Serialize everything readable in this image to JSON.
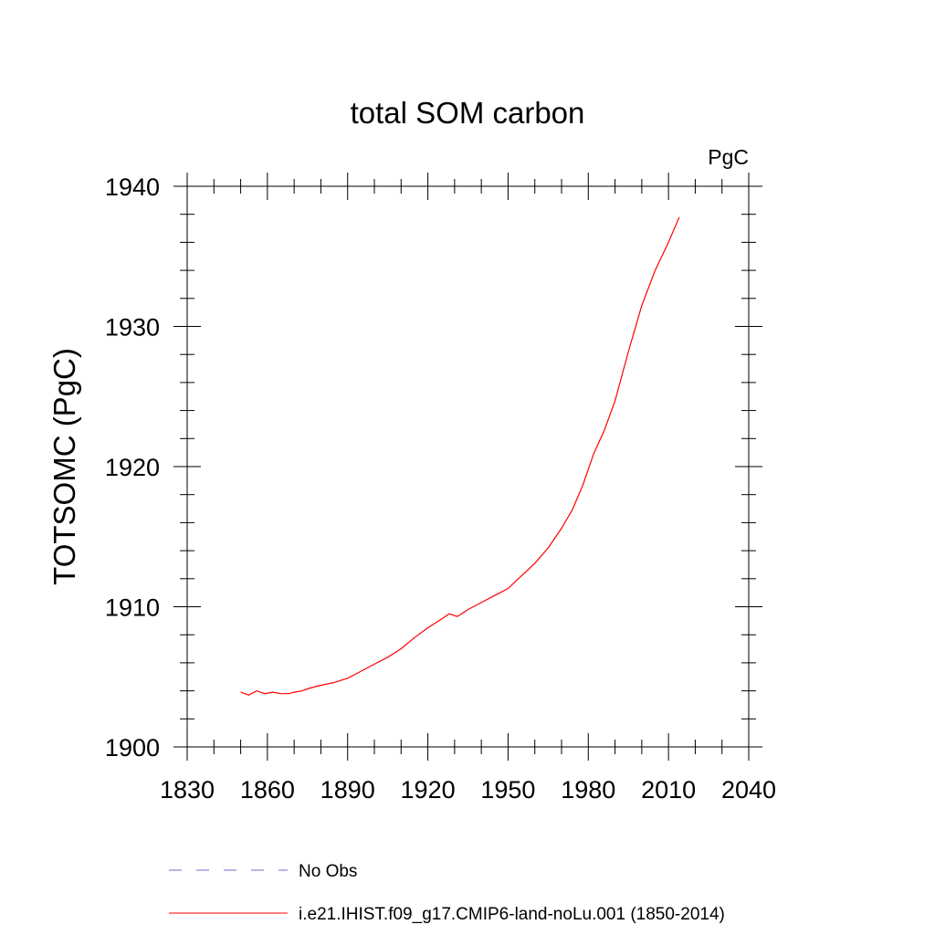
{
  "chart_data": {
    "type": "line",
    "title": "total SOM carbon",
    "units_label": "PgC",
    "xlabel": "",
    "ylabel": "TOTSOMC  (PgC)",
    "xlim": [
      1830,
      2040
    ],
    "ylim": [
      1900,
      1940
    ],
    "x_ticks": [
      1830,
      1860,
      1890,
      1920,
      1950,
      1980,
      2010,
      2040
    ],
    "y_ticks": [
      1900,
      1910,
      1920,
      1930,
      1940
    ],
    "grid": false,
    "legend_placement": "bottom",
    "series": [
      {
        "name": "i.e21.IHIST.f09_g17.CMIP6-land-noLu.001 (1850-2014)",
        "color": "#ff0000",
        "style": "solid",
        "x": [
          1850,
          1853,
          1856,
          1859,
          1862,
          1865,
          1868,
          1870,
          1873,
          1876,
          1880,
          1885,
          1890,
          1895,
          1900,
          1905,
          1910,
          1915,
          1920,
          1925,
          1928,
          1931,
          1935,
          1940,
          1945,
          1950,
          1955,
          1960,
          1965,
          1970,
          1974,
          1978,
          1982,
          1986,
          1990,
          1995,
          2000,
          2005,
          2010,
          2014
        ],
        "y": [
          1903.9,
          1903.7,
          1904.0,
          1903.8,
          1903.9,
          1903.8,
          1903.8,
          1903.9,
          1904.0,
          1904.2,
          1904.4,
          1904.6,
          1904.9,
          1905.4,
          1905.9,
          1906.4,
          1907.0,
          1907.8,
          1908.5,
          1909.1,
          1909.5,
          1909.3,
          1909.8,
          1910.3,
          1910.8,
          1911.3,
          1912.2,
          1913.1,
          1914.2,
          1915.6,
          1916.9,
          1918.7,
          1920.9,
          1922.6,
          1924.7,
          1928.2,
          1931.5,
          1934.0,
          1936.0,
          1937.8
        ]
      },
      {
        "name": "No Obs",
        "color": "#6b6bd6",
        "style": "dashed",
        "x": [],
        "y": []
      }
    ]
  }
}
